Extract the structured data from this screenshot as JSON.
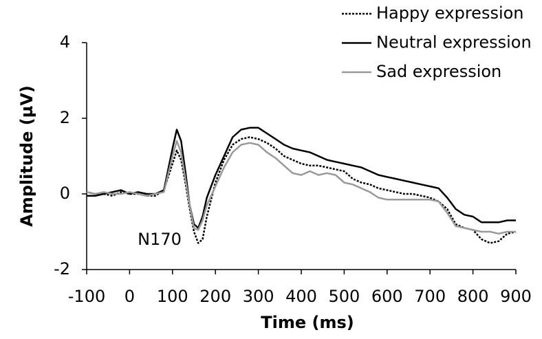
{
  "chart_data": {
    "type": "line",
    "x_label": "Time (ms)",
    "y_label": "Amplitude (µV)",
    "annotation": "N170",
    "x": [
      -100,
      -80,
      -60,
      -40,
      -20,
      0,
      20,
      40,
      60,
      80,
      100,
      110,
      120,
      130,
      140,
      150,
      160,
      170,
      180,
      200,
      220,
      240,
      260,
      280,
      300,
      320,
      340,
      360,
      380,
      400,
      420,
      440,
      460,
      480,
      500,
      520,
      540,
      560,
      580,
      600,
      620,
      640,
      660,
      680,
      700,
      720,
      740,
      760,
      780,
      800,
      820,
      840,
      860,
      880,
      900
    ],
    "series": [
      {
        "name": "Happy expression",
        "color": "#000000",
        "dash": "dotted",
        "values": [
          0.05,
          0,
          0,
          -0.05,
          0.05,
          0,
          0,
          -0.05,
          -0.05,
          0.1,
          0.8,
          1.15,
          0.9,
          0.3,
          -0.4,
          -1.0,
          -1.3,
          -1.2,
          -0.6,
          0.3,
          0.9,
          1.3,
          1.45,
          1.5,
          1.45,
          1.35,
          1.2,
          1.0,
          0.9,
          0.8,
          0.75,
          0.75,
          0.7,
          0.65,
          0.6,
          0.4,
          0.3,
          0.25,
          0.15,
          0.1,
          0.05,
          0.0,
          0.0,
          -0.05,
          -0.1,
          -0.2,
          -0.4,
          -0.8,
          -0.9,
          -0.95,
          -1.2,
          -1.3,
          -1.25,
          -1.05,
          -1.0
        ]
      },
      {
        "name": "Neutral expression",
        "color": "#000000",
        "dash": "solid",
        "values": [
          -0.05,
          -0.05,
          0,
          0.05,
          0.1,
          0,
          0.05,
          0,
          0,
          0.1,
          1.2,
          1.7,
          1.4,
          0.6,
          -0.3,
          -0.8,
          -0.9,
          -0.6,
          -0.1,
          0.5,
          1.0,
          1.5,
          1.7,
          1.75,
          1.75,
          1.6,
          1.45,
          1.3,
          1.2,
          1.15,
          1.1,
          1.0,
          0.9,
          0.85,
          0.8,
          0.75,
          0.7,
          0.6,
          0.5,
          0.45,
          0.4,
          0.35,
          0.3,
          0.25,
          0.2,
          0.15,
          -0.1,
          -0.4,
          -0.55,
          -0.6,
          -0.75,
          -0.75,
          -0.75,
          -0.7,
          -0.7
        ]
      },
      {
        "name": "Sad expression",
        "color": "#999999",
        "dash": "solid",
        "values": [
          0.05,
          0,
          0.05,
          0,
          0,
          0.05,
          0,
          -0.05,
          0,
          0.05,
          1.0,
          1.4,
          1.1,
          0.4,
          -0.3,
          -0.9,
          -0.95,
          -0.7,
          -0.3,
          0.2,
          0.7,
          1.1,
          1.3,
          1.35,
          1.3,
          1.1,
          0.95,
          0.75,
          0.55,
          0.5,
          0.6,
          0.5,
          0.55,
          0.5,
          0.3,
          0.25,
          0.15,
          0.05,
          -0.1,
          -0.15,
          -0.15,
          -0.15,
          -0.15,
          -0.15,
          -0.15,
          -0.2,
          -0.5,
          -0.85,
          -0.9,
          -0.95,
          -1.0,
          -1.0,
          -1.05,
          -1.0,
          -1.0
        ]
      }
    ],
    "xlim": [
      -100,
      900
    ],
    "xticks": [
      -100,
      0,
      100,
      200,
      300,
      400,
      500,
      600,
      700,
      800,
      900
    ],
    "ylim": [
      -2,
      4
    ],
    "yticks": [
      -2,
      0,
      2,
      4
    ],
    "grid": false,
    "legend": "top-right"
  }
}
